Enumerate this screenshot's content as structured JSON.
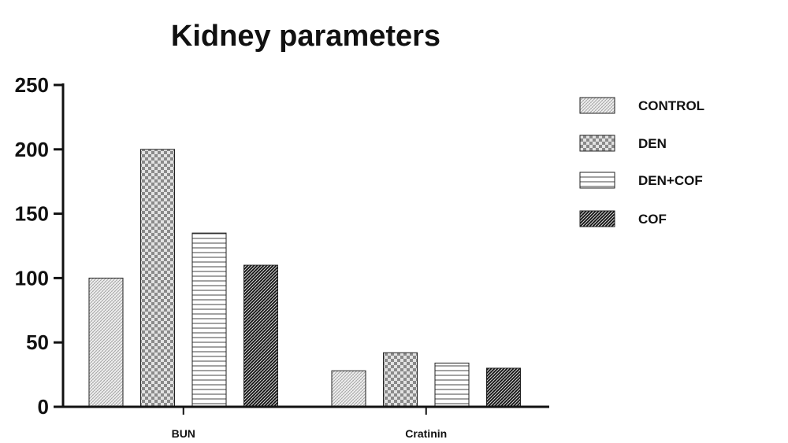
{
  "chart_data": {
    "type": "bar",
    "title": "Kidney parameters",
    "xlabel": "",
    "ylabel": "",
    "categories": [
      "BUN",
      "Cratinin"
    ],
    "ylim": [
      0,
      250
    ],
    "yticks": [
      "0",
      "50",
      "100",
      "150",
      "200",
      "250"
    ],
    "series": [
      {
        "name": "CONTROL",
        "values": [
          100,
          28
        ],
        "pattern": "fine-crosshatch"
      },
      {
        "name": "DEN",
        "values": [
          200,
          42
        ],
        "pattern": "checkerboard"
      },
      {
        "name": "DEN+COF",
        "values": [
          135,
          34
        ],
        "pattern": "horizontal-lines"
      },
      {
        "name": "COF",
        "values": [
          110,
          30
        ],
        "pattern": "dense-diagonal"
      }
    ],
    "legend_placement": "right",
    "grid": false
  },
  "colors": {
    "axis": "#111111",
    "bar_outline": "#222222"
  }
}
